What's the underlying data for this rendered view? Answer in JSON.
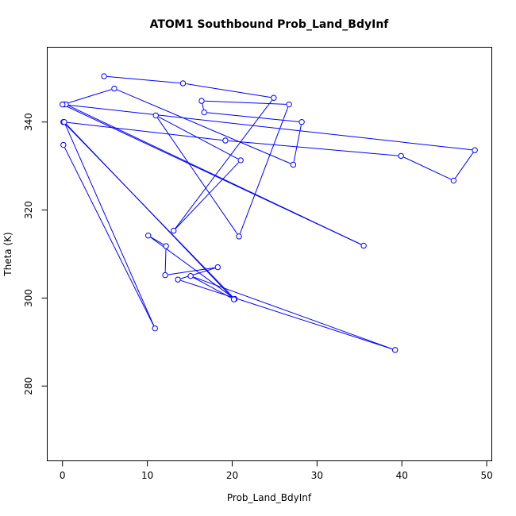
{
  "chart_data": {
    "type": "line",
    "title": "ATOM1 Southbound Prob_Land_BdyInf",
    "xlabel": "Prob_Land_BdyInf",
    "ylabel": "Theta (K)",
    "xlim": [
      -1.8,
      50.6
    ],
    "ylim": [
      263.0,
      357.0
    ],
    "x_ticks": [
      0,
      10,
      20,
      30,
      40,
      50
    ],
    "y_ticks": [
      280,
      300,
      320,
      340
    ],
    "grid": false,
    "legend": "none",
    "series": [
      {
        "color": "#0000ff",
        "marker": "open-circle",
        "points": [
          {
            "x": 4.9,
            "y": 350.4
          },
          {
            "x": 14.2,
            "y": 348.8
          },
          {
            "x": 24.9,
            "y": 345.5
          },
          {
            "x": 13.1,
            "y": 315.3
          },
          {
            "x": 21.0,
            "y": 331.3
          },
          {
            "x": 11.0,
            "y": 341.5
          },
          {
            "x": 20.8,
            "y": 314.0
          },
          {
            "x": 26.7,
            "y": 344.0
          },
          {
            "x": 16.4,
            "y": 344.8
          },
          {
            "x": 16.7,
            "y": 342.2
          },
          {
            "x": 28.2,
            "y": 340.0
          },
          {
            "x": 27.2,
            "y": 330.3
          },
          {
            "x": 6.1,
            "y": 347.6
          },
          {
            "x": 0.1,
            "y": 344.0
          },
          {
            "x": 0.4,
            "y": 344.0
          },
          {
            "x": 35.5,
            "y": 311.9
          },
          {
            "x": 0.0,
            "y": 344.0
          },
          {
            "x": 48.6,
            "y": 333.6
          },
          {
            "x": 46.1,
            "y": 326.7
          },
          {
            "x": 39.9,
            "y": 332.3
          },
          {
            "x": 19.2,
            "y": 335.8
          },
          {
            "x": 0.1,
            "y": 340.0
          },
          {
            "x": 20.3,
            "y": 299.8
          },
          {
            "x": 10.1,
            "y": 314.2
          },
          {
            "x": 12.2,
            "y": 311.8
          },
          {
            "x": 12.1,
            "y": 305.2
          },
          {
            "x": 18.3,
            "y": 307.0
          },
          {
            "x": 13.6,
            "y": 304.2
          },
          {
            "x": 39.2,
            "y": 288.2
          },
          {
            "x": 15.1,
            "y": 305.0
          },
          {
            "x": 20.2,
            "y": 299.7
          },
          {
            "x": 0.2,
            "y": 340.0
          },
          {
            "x": 10.9,
            "y": 293.1
          },
          {
            "x": 0.1,
            "y": 334.8
          }
        ]
      }
    ]
  }
}
